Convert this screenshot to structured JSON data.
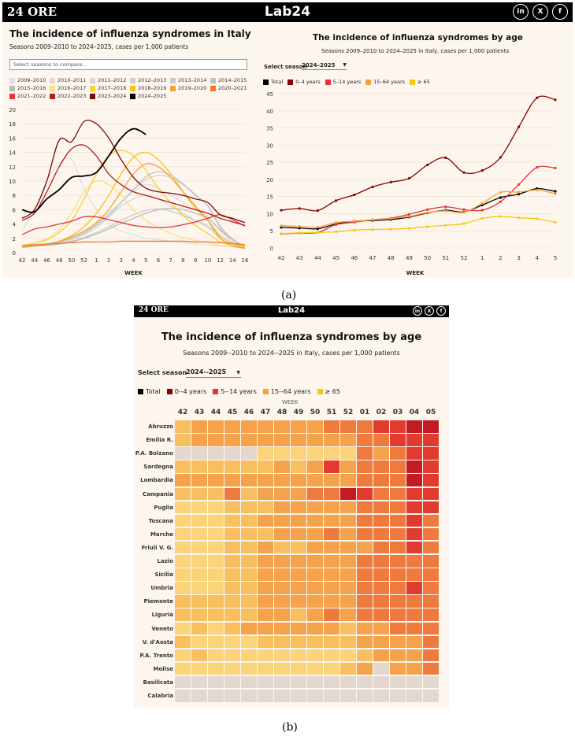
{
  "brand": "24 ORE",
  "logo": "Lab24",
  "social": [
    "in",
    "X",
    "f"
  ],
  "panel_a": {
    "caption": "(a)",
    "left": {
      "title": "The incidence of influenza syndromes in Italy",
      "subtitle": "Seasons 2009–2010 to 2024–2025, cases per 1,000 patients",
      "search_placeholder": "Select seasons to compare..."
    },
    "right": {
      "title": "The incidence of influenza syndromes by age",
      "subtitle": "Seasons 2009–2010 to 2024–2025 in Italy, cases per 1,000 patients",
      "select_label": "Select season",
      "select_value": "2024–2025"
    }
  },
  "panel_b": {
    "caption": "(b)",
    "title": "The incidence of influenza syndromes by age",
    "subtitle": "Seasons 2009--2010 to 2024--2025 in Italy, cases per 1,000 patients",
    "select_label": "Select season",
    "select_value": "2024--2025",
    "legend": [
      "Total",
      "0--4 years",
      "5--14 years",
      "15--64 years",
      "≥ 65"
    ],
    "axis_title": "WEEK"
  },
  "colors": {
    "total": "#000000",
    "age0_4": "#8b0000",
    "age5_14": "#e8323c",
    "age15_64": "#f4a03c",
    "age65": "#f6c90e"
  },
  "chart_data": [
    {
      "type": "line",
      "title": "The incidence of influenza syndromes in Italy",
      "xlabel": "WEEK",
      "x": [
        "42",
        "44",
        "46",
        "48",
        "50",
        "52",
        "1",
        "2",
        "3",
        "4",
        "5",
        "6",
        "7",
        "8",
        "9",
        "10",
        "12",
        "14",
        "16"
      ],
      "x_ticks": [
        "42",
        "44",
        "46",
        "48",
        "50",
        "52",
        "1",
        "2",
        "3",
        "4",
        "5",
        "6",
        "7",
        "8",
        "9",
        "10",
        "12",
        "14",
        "16"
      ],
      "ylim": [
        0,
        20
      ],
      "yticks": [
        0,
        2,
        4,
        6,
        8,
        10,
        12,
        14,
        16,
        18,
        20
      ],
      "series": [
        {
          "name": "2009–2010",
          "color": "#e0e0e0",
          "values": [
            3,
            6,
            10,
            12.5,
            13,
            9,
            6,
            4,
            3,
            2.5,
            2,
            1.8,
            1.6,
            1.4,
            1.2,
            1.1,
            1,
            0.8,
            0.6
          ]
        },
        {
          "name": "2010–2011",
          "color": "#dcdcdc",
          "values": [
            0.8,
            1,
            1.2,
            1.5,
            2,
            2.8,
            4,
            5.5,
            7,
            8.5,
            9.5,
            9,
            8,
            7,
            6,
            5,
            3,
            1.5,
            0.8
          ]
        },
        {
          "name": "2011–2012",
          "color": "#d7d7d7",
          "values": [
            0.8,
            1,
            1.2,
            1.4,
            1.8,
            2.5,
            3.5,
            5,
            6.5,
            7.5,
            8,
            7.5,
            6.5,
            5.5,
            4.5,
            3.5,
            2,
            1.2,
            0.7
          ]
        },
        {
          "name": "2012–2013",
          "color": "#d0d0d0",
          "values": [
            0.8,
            1,
            1.2,
            1.5,
            2,
            2.8,
            4,
            5.5,
            7,
            8.8,
            10.2,
            10.8,
            10.5,
            9.5,
            8,
            6.5,
            3.5,
            1.8,
            0.9
          ]
        },
        {
          "name": "2013–2014",
          "color": "#c9c9c9",
          "values": [
            0.8,
            0.9,
            1.1,
            1.3,
            1.6,
            2.1,
            2.8,
            3.6,
            4.5,
            5.3,
            5.9,
            6.1,
            5.8,
            5.2,
            4.5,
            3.7,
            2.3,
            1.3,
            0.7
          ]
        },
        {
          "name": "2014–2015",
          "color": "#c2c2c2",
          "values": [
            0.8,
            1,
            1.2,
            1.5,
            2,
            2.7,
            3.8,
            5.2,
            7,
            8.8,
            10.6,
            11.3,
            10.8,
            9.6,
            8.1,
            6.5,
            3.7,
            1.9,
            0.9
          ]
        },
        {
          "name": "2015–2016",
          "color": "#bbbbbb",
          "values": [
            0.7,
            0.9,
            1,
            1.2,
            1.5,
            2,
            2.6,
            3.3,
            4.1,
            4.8,
            5.5,
            6,
            6.2,
            6,
            5.5,
            4.8,
            3.2,
            1.8,
            0.9
          ]
        },
        {
          "name": "2016–2017",
          "color": "#f5e08a",
          "values": [
            1,
            1.3,
            2,
            3.2,
            5.5,
            8.5,
            10,
            9.5,
            8,
            6,
            4.5,
            3.5,
            2.7,
            2.1,
            1.7,
            1.4,
            1,
            0.8,
            0.6
          ]
        },
        {
          "name": "2017–2018",
          "color": "#f8d030",
          "values": [
            1,
            1.3,
            1.8,
            2.8,
            4.5,
            7.5,
            11,
            13.5,
            14.3,
            13.5,
            11.5,
            9,
            7,
            5.2,
            3.8,
            2.7,
            1.5,
            1,
            0.7
          ]
        },
        {
          "name": "2018–2019",
          "color": "#f9c21a",
          "values": [
            0.8,
            1,
            1.2,
            1.6,
            2.4,
            3.6,
            5.5,
            8,
            11,
            13.3,
            14,
            13,
            11,
            8.5,
            6.2,
            4.5,
            2.4,
            1.3,
            0.8
          ]
        },
        {
          "name": "2019–2020",
          "color": "#f4a03c",
          "values": [
            0.8,
            1,
            1.2,
            1.6,
            2.2,
            3,
            4.2,
            6,
            8.5,
            11,
            12.4,
            12,
            10.5,
            8.5,
            6.5,
            4.5,
            2,
            1,
            0.6
          ]
        },
        {
          "name": "2020–2021",
          "color": "#f2762a",
          "values": [
            1,
            1.1,
            1.2,
            1.3,
            1.4,
            1.5,
            1.5,
            1.5,
            1.6,
            1.6,
            1.6,
            1.6,
            1.6,
            1.6,
            1.5,
            1.5,
            1.4,
            1.3,
            1.1
          ]
        },
        {
          "name": "2021–2022",
          "color": "#e8323c",
          "values": [
            2.5,
            3.3,
            3.6,
            4,
            4.4,
            5,
            5,
            4.6,
            4.2,
            3.8,
            3.6,
            3.5,
            3.6,
            3.9,
            4.3,
            4.8,
            5.3,
            4.6,
            3.7
          ]
        },
        {
          "name": "2022–2023",
          "color": "#b71c1c",
          "values": [
            4.5,
            5.5,
            8.5,
            12,
            14.5,
            15,
            13.5,
            11,
            9.5,
            8.5,
            8,
            7.5,
            7,
            6.5,
            6,
            5.5,
            4.8,
            4.3,
            3.8
          ]
        },
        {
          "name": "2023–2024",
          "color": "#7a0a0a",
          "values": [
            4.8,
            6,
            10,
            15.7,
            15.5,
            18.3,
            18,
            16,
            13,
            10.5,
            9,
            8.5,
            8.3,
            8,
            7.5,
            7,
            5.3,
            4.8,
            4.2
          ]
        },
        {
          "name": "2024–2025",
          "color": "#000000",
          "values": [
            6,
            5.7,
            7.5,
            8.8,
            10.5,
            10.7,
            11.2,
            13.5,
            16,
            17.3,
            16.5,
            null,
            null,
            null,
            null,
            null,
            null,
            null,
            null
          ]
        }
      ]
    },
    {
      "type": "line",
      "title": "The incidence of influenza syndromes by age",
      "xlabel": "WEEK",
      "categories": [
        "42",
        "43",
        "44",
        "45",
        "46",
        "47",
        "48",
        "49",
        "50",
        "51",
        "52",
        "1",
        "2",
        "3",
        "4",
        "5"
      ],
      "ylim": [
        0,
        45
      ],
      "yticks": [
        0,
        5,
        10,
        15,
        20,
        25,
        30,
        35,
        40,
        45
      ],
      "legend": [
        "Total",
        "0–4 years",
        "5–14 years",
        "15–64 years",
        "≥ 65"
      ],
      "series": [
        {
          "name": "Total",
          "color": "#000000",
          "values": [
            6,
            5.8,
            5.6,
            7,
            7.8,
            8,
            8.3,
            9,
            10.2,
            11,
            10.5,
            12.5,
            14.7,
            15.7,
            17.3,
            16.5
          ]
        },
        {
          "name": "0–4 years",
          "color": "#8b0000",
          "values": [
            11,
            11.5,
            10.9,
            13.8,
            15.5,
            17.8,
            19.2,
            20.3,
            24.2,
            26.3,
            22,
            22.6,
            26.4,
            35.3,
            43.8,
            43.2
          ]
        },
        {
          "name": "5–14 years",
          "color": "#e8323c",
          "values": [
            4.1,
            4.3,
            4.5,
            6.8,
            7.5,
            8.2,
            8.7,
            9.8,
            11.2,
            12,
            11.2,
            11,
            13.5,
            18.5,
            23.5,
            23.3
          ]
        },
        {
          "name": "15–64 years",
          "color": "#f4a03c",
          "values": [
            6.5,
            6.3,
            6.1,
            7.4,
            7.8,
            8.2,
            8.6,
            9.2,
            10.3,
            10.8,
            10.4,
            13,
            16.2,
            16.3,
            16.9,
            15.8
          ]
        },
        {
          "name": "≥ 65",
          "color": "#f6c90e",
          "values": [
            4.2,
            4.4,
            4.5,
            4.7,
            5.2,
            5.4,
            5.5,
            5.7,
            6.2,
            6.6,
            7.1,
            8.6,
            9.2,
            8.8,
            8.5,
            7.5
          ]
        }
      ]
    },
    {
      "type": "heatmap",
      "title": "The incidence of influenza syndromes by age",
      "xlabel": "WEEK",
      "columns": [
        "42",
        "43",
        "44",
        "45",
        "46",
        "47",
        "48",
        "49",
        "50",
        "51",
        "52",
        "01",
        "02",
        "03",
        "04",
        "05"
      ],
      "rows": [
        "Abruzzo",
        "Emilia R.",
        "P.A. Bolzano",
        "Sardegna",
        "Lombardia",
        "Campania",
        "Puglia",
        "Toscana",
        "Marche",
        "Friuli V. G.",
        "Lazio",
        "Sicilia",
        "Umbria",
        "Piemonte",
        "Liguria",
        "Veneto",
        "V. d'Aosta",
        "P.A. Trento",
        "Molise",
        "Basilicata",
        "Calabria"
      ],
      "levels": "0 = no data, 1 = very low, 2 = low, 3 = moderate, 4 = high, 5 = very high, 6 = extreme",
      "values": [
        [
          2,
          3,
          3,
          3,
          3,
          3,
          3,
          3,
          3,
          4,
          4,
          4,
          5,
          5,
          6,
          6
        ],
        [
          2,
          3,
          3,
          3,
          3,
          3,
          3,
          3,
          3,
          3,
          3,
          4,
          4,
          5,
          5,
          5
        ],
        [
          0,
          0,
          0,
          0,
          0,
          1,
          1,
          1,
          1,
          1,
          1,
          4,
          3,
          4,
          5,
          5
        ],
        [
          2,
          2,
          2,
          2,
          2,
          2,
          3,
          2,
          3,
          5,
          3,
          4,
          4,
          4,
          6,
          5
        ],
        [
          3,
          3,
          3,
          3,
          3,
          3,
          3,
          3,
          3,
          3,
          3,
          4,
          4,
          4,
          6,
          5
        ],
        [
          2,
          2,
          2,
          4,
          2,
          3,
          3,
          3,
          4,
          4,
          6,
          5,
          4,
          4,
          5,
          5
        ],
        [
          1,
          1,
          1,
          2,
          2,
          2,
          3,
          3,
          3,
          3,
          3,
          4,
          4,
          4,
          5,
          5
        ],
        [
          1,
          1,
          1,
          2,
          2,
          3,
          3,
          3,
          3,
          3,
          3,
          4,
          4,
          4,
          5,
          4
        ],
        [
          1,
          1,
          1,
          2,
          2,
          2,
          3,
          3,
          3,
          4,
          3,
          4,
          4,
          4,
          5,
          4
        ],
        [
          1,
          1,
          1,
          2,
          2,
          3,
          2,
          2,
          3,
          3,
          3,
          3,
          4,
          4,
          5,
          4
        ],
        [
          1,
          1,
          1,
          2,
          2,
          3,
          3,
          3,
          3,
          3,
          3,
          4,
          4,
          4,
          4,
          4
        ],
        [
          1,
          1,
          1,
          2,
          2,
          3,
          3,
          3,
          3,
          3,
          3,
          4,
          4,
          4,
          4,
          4
        ],
        [
          1,
          1,
          1,
          2,
          2,
          3,
          3,
          3,
          3,
          3,
          3,
          4,
          4,
          4,
          5,
          4
        ],
        [
          2,
          2,
          2,
          2,
          2,
          3,
          3,
          3,
          3,
          3,
          3,
          4,
          4,
          4,
          4,
          4
        ],
        [
          2,
          2,
          2,
          2,
          2,
          3,
          3,
          2,
          3,
          4,
          3,
          4,
          4,
          4,
          4,
          4
        ],
        [
          1,
          2,
          1,
          2,
          3,
          3,
          3,
          3,
          3,
          3,
          2,
          3,
          3,
          4,
          4,
          4
        ],
        [
          2,
          1,
          1,
          1,
          1,
          2,
          2,
          2,
          2,
          2,
          2,
          3,
          3,
          3,
          3,
          4
        ],
        [
          1,
          2,
          1,
          1,
          1,
          1,
          1,
          1,
          1,
          1,
          1,
          2,
          3,
          3,
          3,
          4
        ],
        [
          1,
          1,
          1,
          1,
          1,
          1,
          1,
          1,
          1,
          1,
          2,
          3,
          0,
          3,
          3,
          4
        ],
        [
          0,
          0,
          0,
          0,
          0,
          0,
          0,
          0,
          0,
          0,
          0,
          0,
          0,
          0,
          0,
          0
        ],
        [
          0,
          0,
          0,
          0,
          0,
          0,
          0,
          0,
          0,
          0,
          0,
          0,
          0,
          0,
          0,
          0
        ]
      ]
    }
  ]
}
